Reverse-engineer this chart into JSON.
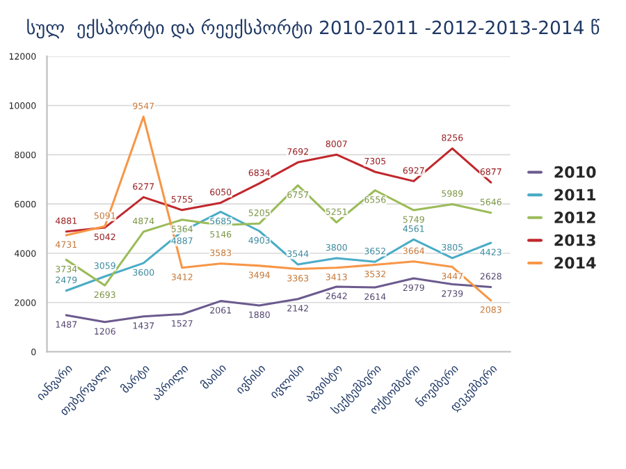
{
  "chart_data": {
    "type": "line",
    "title": "სულ  ექსპორტი და რეექსპორტი 2010-2011 -2012-2013-2014 წ",
    "categories": [
      "იანვარი",
      "თებერვალი",
      "მარტი",
      "აპრილი",
      "მაისი",
      "ივნისი",
      "ივლისი",
      "აგვისტო",
      "სექტემბერი",
      "ოქტომბერი",
      "ნოემბერი",
      "დეკემბერი"
    ],
    "series": [
      {
        "name": "2010",
        "color": "#6b5a8e",
        "values": [
          1487,
          1206,
          1437,
          1527,
          2061,
          1880,
          2142,
          2642,
          2614,
          2979,
          2739,
          2628
        ]
      },
      {
        "name": "2011",
        "color": "#4bacc6",
        "values": [
          2479,
          3059,
          3600,
          4887,
          5685,
          4903,
          3544,
          3800,
          3652,
          4561,
          3805,
          4423
        ]
      },
      {
        "name": "2012",
        "color": "#9bbb59",
        "values": [
          3734,
          2693,
          4874,
          5364,
          5146,
          5205,
          6757,
          5251,
          6556,
          5749,
          5989,
          5646
        ]
      },
      {
        "name": "2013",
        "color": "#c0282d",
        "values": [
          4881,
          5042,
          6277,
          5755,
          6050,
          6834,
          7692,
          8007,
          7305,
          6927,
          8256,
          6877
        ]
      },
      {
        "name": "2014",
        "color": "#f79646",
        "values": [
          4731,
          5091,
          9547,
          3412,
          3583,
          3494,
          3363,
          3413,
          3532,
          3664,
          3447,
          2083
        ]
      }
    ],
    "ylim": [
      0,
      12000
    ],
    "yticks": [
      0,
      2000,
      4000,
      6000,
      8000,
      10000,
      12000
    ],
    "grid": "y",
    "legend": "right",
    "data_labels": true,
    "line_style": "solid"
  }
}
